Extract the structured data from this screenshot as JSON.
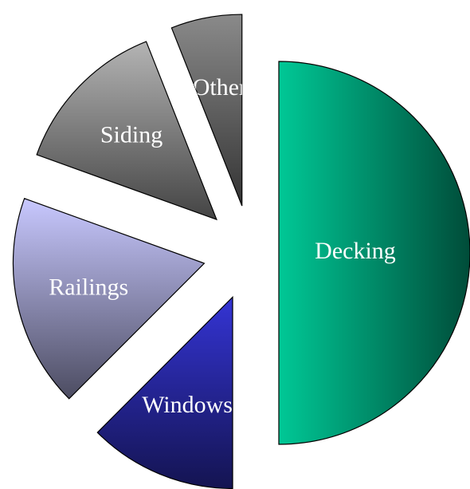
{
  "chart_data": {
    "type": "pie",
    "categories": [
      "Decking",
      "Windows",
      "Railings",
      "Siding",
      "Other"
    ],
    "values": [
      50,
      12.5,
      18,
      13.5,
      6
    ],
    "colors": [
      "#00c896",
      "#3434d4",
      "#c8c8ff",
      "#b4b4b4",
      "#8a8a8a"
    ]
  }
}
